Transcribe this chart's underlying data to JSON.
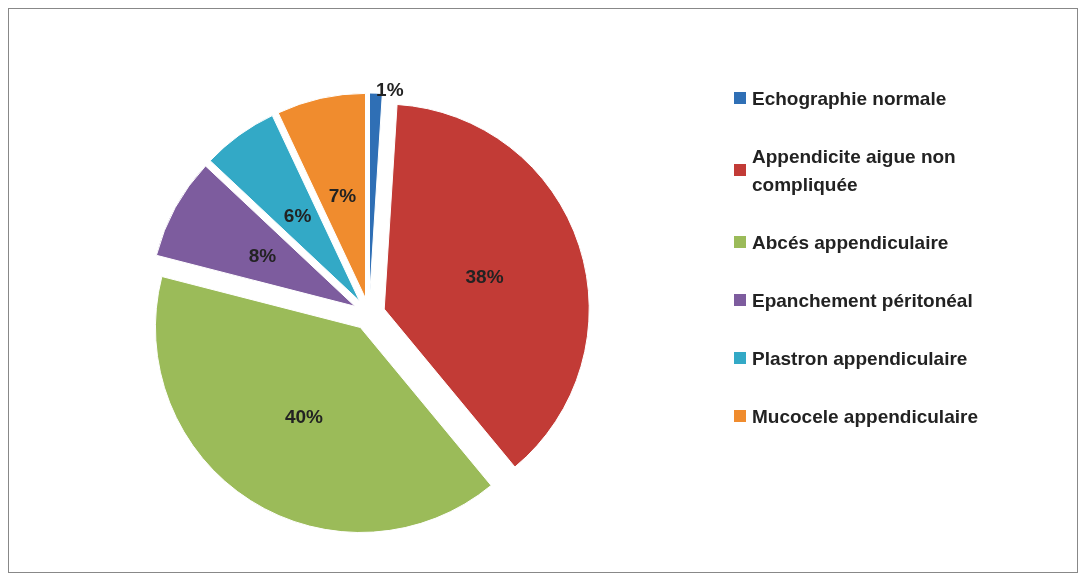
{
  "chart_data": {
    "type": "pie",
    "categories": [
      "Echographie normale",
      "Appendicite aigue non compliquée",
      "Abcés appendiculaire",
      "Epanchement péritonéal",
      "Plastron appendiculaire",
      "Mucocele appendiculaire"
    ],
    "values": [
      1,
      38,
      40,
      8,
      6,
      7
    ],
    "colors": [
      "#2f6fb5",
      "#c23b36",
      "#9bbb59",
      "#7d5c9e",
      "#33a9c6",
      "#f08c2e"
    ],
    "value_labels": [
      "1%",
      "38%",
      "40%",
      "8%",
      "6%",
      "7%"
    ],
    "legend": "right"
  }
}
